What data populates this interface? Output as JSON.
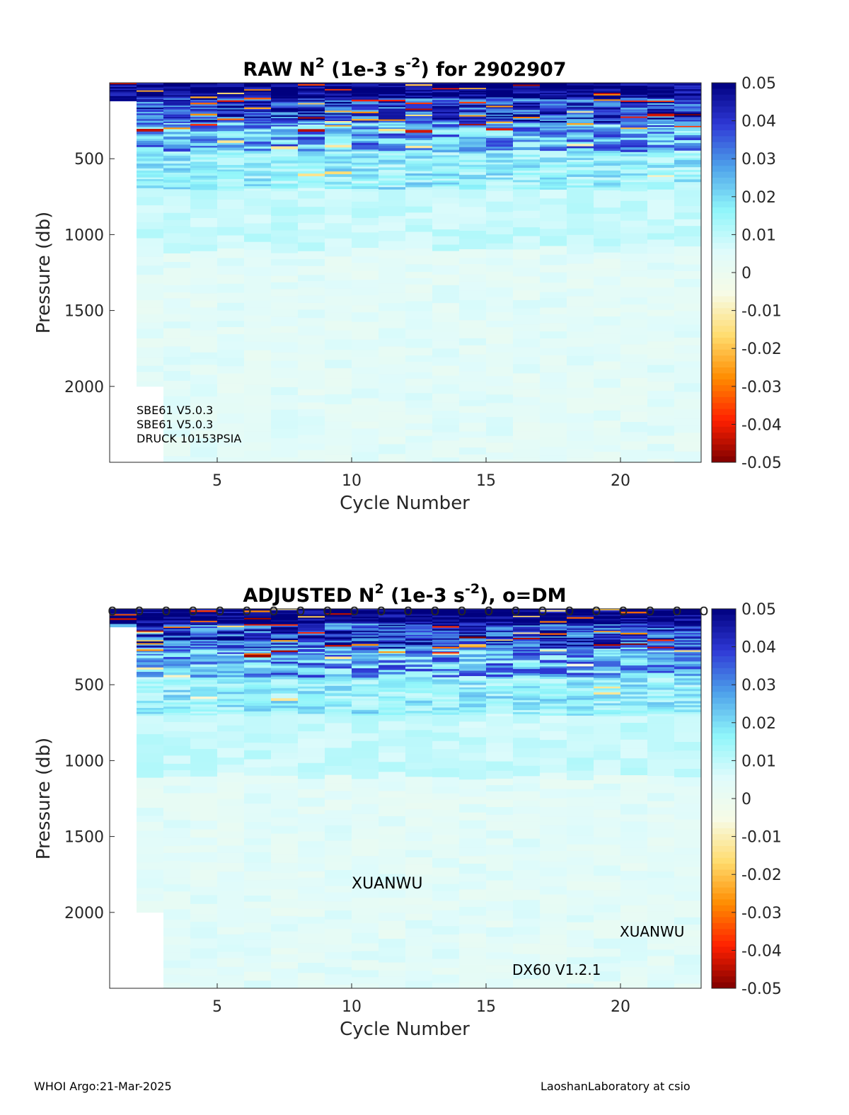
{
  "colormap": {
    "stops": [
      "#7f0000",
      "#ff2000",
      "#ff8c00",
      "#ffdc6e",
      "#f7fbe6",
      "#dffbfb",
      "#8ef5fa",
      "#4ea2ea",
      "#2f39d6",
      "#00007f"
    ],
    "ticks": [
      "0.05",
      "0.04",
      "0.03",
      "0.02",
      "0.01",
      "0",
      "-0.01",
      "-0.02",
      "-0.03",
      "-0.04",
      "-0.05"
    ],
    "clim": [
      -0.05,
      0.05
    ]
  },
  "chart_data": [
    {
      "type": "heatmap",
      "title": {
        "main": "RAW N",
        "sup1": "2",
        "mid": " (1e-3 s",
        "sup2": "-2",
        "tail": ") for 2902907"
      },
      "xlabel": "Cycle Number",
      "ylabel": "Pressure (db)",
      "xlim": [
        1,
        23
      ],
      "ylim": [
        2500,
        0
      ],
      "xticks": [
        "5",
        "10",
        "15",
        "20"
      ],
      "yticks": [
        "500",
        "1000",
        "1500",
        "2000"
      ],
      "cycles": [
        1,
        2,
        3,
        4,
        5,
        6,
        7,
        8,
        9,
        10,
        11,
        12,
        13,
        14,
        15,
        16,
        17,
        18,
        19,
        20,
        21,
        22
      ],
      "max_pressure": [
        120,
        2000,
        2500,
        2500,
        2500,
        2500,
        2500,
        2500,
        2500,
        2500,
        2500,
        2500,
        2500,
        2500,
        2500,
        2500,
        2500,
        2500,
        2500,
        2500,
        2500,
        2500
      ],
      "profile_summary": "strong positive N2 (>0.04) above ~200 db with scattered negative values near surface; decreasing to ~0.01-0.02 by 700 db; near 0 to 0.005 below 1000 db",
      "annotations": [
        "SBE61 V5.0.3",
        "SBE61 V5.0.3",
        "DRUCK 10153PSIA"
      ]
    },
    {
      "type": "heatmap",
      "title": {
        "main": "ADJUSTED N",
        "sup1": "2",
        "mid": " (1e-3 s",
        "sup2": "-2",
        "tail": "), o=DM"
      },
      "xlabel": "Cycle Number",
      "ylabel": "Pressure (db)",
      "xlim": [
        1,
        23
      ],
      "ylim": [
        2500,
        0
      ],
      "xticks": [
        "5",
        "10",
        "15",
        "20"
      ],
      "yticks": [
        "500",
        "1000",
        "1500",
        "2000"
      ],
      "cycles": [
        1,
        2,
        3,
        4,
        5,
        6,
        7,
        8,
        9,
        10,
        11,
        12,
        13,
        14,
        15,
        16,
        17,
        18,
        19,
        20,
        21,
        22
      ],
      "max_pressure": [
        120,
        2000,
        2500,
        2500,
        2500,
        2500,
        2500,
        2500,
        2500,
        2500,
        2500,
        2500,
        2500,
        2500,
        2500,
        2500,
        2500,
        2500,
        2500,
        2500,
        2500,
        2500
      ],
      "dm_marker": "o",
      "dm_cycles": [
        1,
        2,
        3,
        4,
        5,
        6,
        7,
        8,
        9,
        10,
        11,
        12,
        13,
        14,
        15,
        16,
        17,
        18,
        19,
        20,
        21,
        22,
        23
      ],
      "annotations": [
        "XUANWU",
        "XUANWU",
        "DX60 V1.2.1"
      ]
    }
  ],
  "footer": {
    "left": "WHOI Argo:21-Mar-2025",
    "right": "LaoshanLaboratory at csio"
  }
}
